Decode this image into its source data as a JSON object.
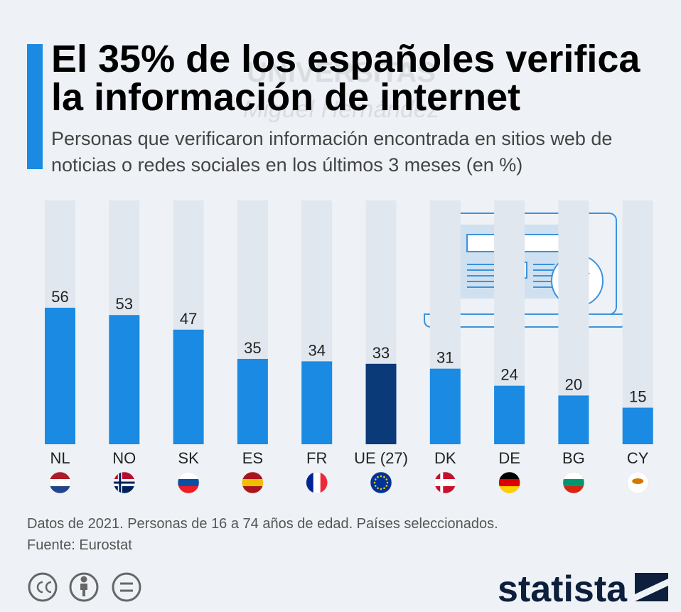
{
  "chart_data": {
    "type": "bar",
    "title": "El 35% de los españoles verifica la información de internet",
    "subtitle": "Personas que verificaron información encontrada en sitios web de noticias o redes sociales en los últimos 3 meses (en %)",
    "categories": [
      "NL",
      "NO",
      "SK",
      "ES",
      "FR",
      "UE (27)",
      "DK",
      "DE",
      "BG",
      "CY"
    ],
    "values": [
      56,
      53,
      47,
      35,
      34,
      33,
      31,
      24,
      20,
      15
    ],
    "colors": [
      "#1b8ae2",
      "#1b8ae2",
      "#1b8ae2",
      "#1b8ae2",
      "#1b8ae2",
      "#0b3a78",
      "#1b8ae2",
      "#1b8ae2",
      "#1b8ae2",
      "#1b8ae2"
    ],
    "ylim": [
      0,
      100
    ],
    "note": "Datos de 2021. Personas de 16 a 74 años de edad. Países seleccionados.",
    "source": "Fuente: Eurostat",
    "watermark": [
      "UNIVERSITAS",
      "Miguel Hernández"
    ],
    "brand": "statista"
  }
}
